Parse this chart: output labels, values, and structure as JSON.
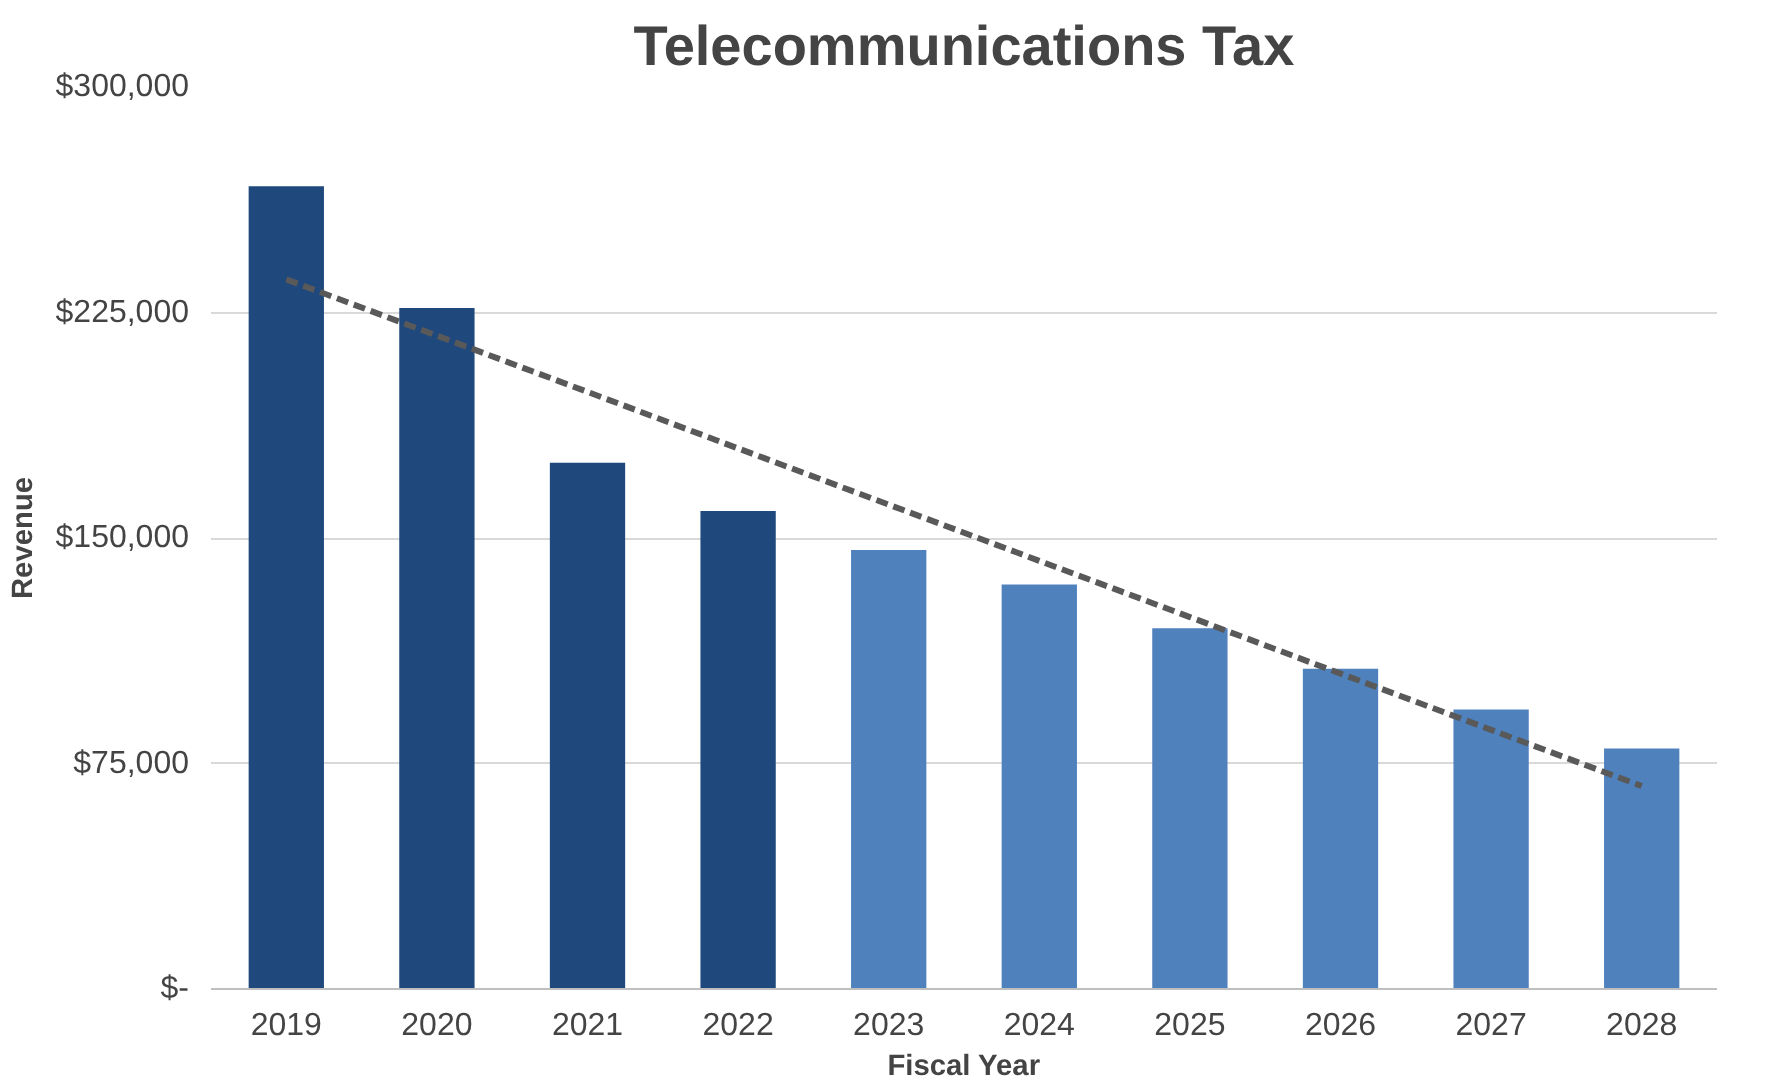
{
  "chart_data": {
    "type": "bar",
    "title": "Telecommunications Tax",
    "xlabel": "Fiscal Year",
    "ylabel": "Revenue",
    "categories": [
      "2019",
      "2020",
      "2021",
      "2022",
      "2023",
      "2024",
      "2025",
      "2026",
      "2027",
      "2028"
    ],
    "series": [
      {
        "colors": [
          "#1f497d",
          "#1f497d",
          "#1f497d",
          "#1f497d",
          "#4f81bd",
          "#4f81bd",
          "#4f81bd",
          "#4f81bd",
          "#4f81bd",
          "#4f81bd"
        ],
        "values": [
          267000,
          226500,
          175000,
          159000,
          146000,
          134500,
          120000,
          106500,
          93000,
          80000
        ]
      },
      {
        "type": "line",
        "values": [
          236000,
          217300,
          198600,
          179800,
          161100,
          142400,
          123700,
          104900,
          86200,
          67500
        ],
        "color": "#595959",
        "line_style": "dashed"
      }
    ],
    "ylim": [
      0,
      300000
    ],
    "yticks": [
      {
        "value": 0,
        "label": "$-"
      },
      {
        "value": 75000,
        "label": "$75,000"
      },
      {
        "value": 150000,
        "label": "$150,000"
      },
      {
        "value": 225000,
        "label": "$225,000"
      },
      {
        "value": 300000,
        "label": "$300,000"
      }
    ],
    "grid": "y"
  }
}
